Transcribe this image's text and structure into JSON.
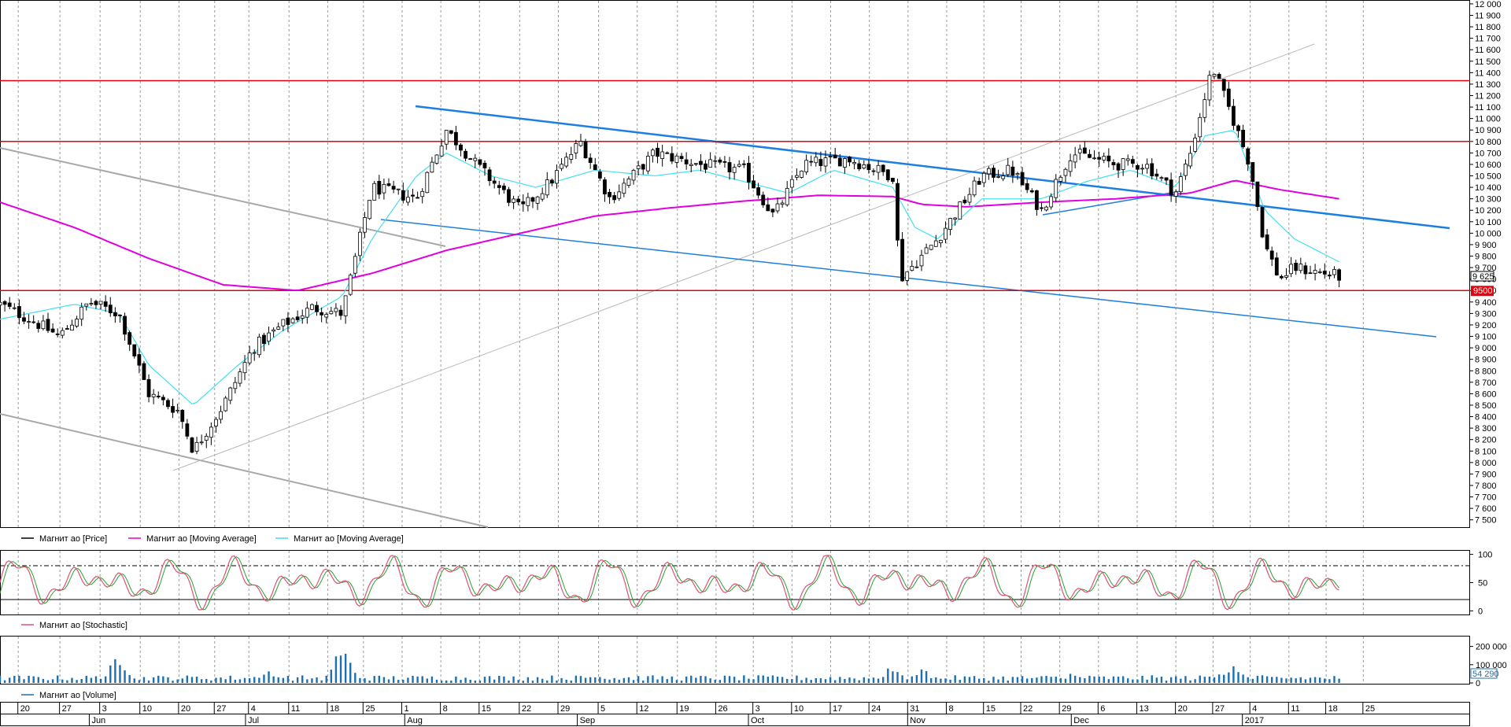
{
  "chart_data": {
    "type": "line",
    "price_panel": {
      "y_axis_ticks": [
        7500,
        7600,
        7700,
        7800,
        7900,
        8000,
        8100,
        8200,
        8300,
        8400,
        8500,
        8600,
        8700,
        8800,
        8900,
        9000,
        9100,
        9200,
        9300,
        9400,
        9500,
        9600,
        9700,
        9800,
        9900,
        10000,
        10100,
        10200,
        10300,
        10400,
        10500,
        10600,
        10700,
        10800,
        10900,
        11000,
        11100,
        11200,
        11300,
        11400,
        11500,
        11600,
        11700,
        11800,
        11900,
        12000
      ],
      "y_axis_tick_labels": [
        "7 500",
        "7 600",
        "7 700",
        "7 800",
        "7 900",
        "8 000",
        "8 100",
        "8 200",
        "8 300",
        "8 400",
        "8 500",
        "8 600",
        "8 700",
        "8 800",
        "8 900",
        "9 000",
        "9 100",
        "9 200",
        "9 300",
        "9 400",
        "9 500",
        "9 600",
        "9 700",
        "9 800",
        "9 900",
        "10 000",
        "10 100",
        "10 200",
        "10 300",
        "10 400",
        "10 500",
        "10 600",
        "10 700",
        "10 800",
        "10 900",
        "11 000",
        "11 100",
        "11 200",
        "11 300",
        "11 400",
        "11 500",
        "11 600",
        "11 700",
        "11 800",
        "11 900",
        "12 000"
      ],
      "ylim": [
        7450,
        12020
      ],
      "last_price_label": "9 625",
      "last_price": 9625,
      "support_label": "9500",
      "horizontal_levels": [
        11330,
        10800,
        9500
      ],
      "price_anchors": [
        [
          0,
          9380
        ],
        [
          0.02,
          9250
        ],
        [
          0.04,
          9100
        ],
        [
          0.06,
          9400
        ],
        [
          0.08,
          9300
        ],
        [
          0.1,
          8600
        ],
        [
          0.12,
          8450
        ],
        [
          0.13,
          8100
        ],
        [
          0.15,
          8500
        ],
        [
          0.17,
          9000
        ],
        [
          0.19,
          9200
        ],
        [
          0.21,
          9350
        ],
        [
          0.23,
          9300
        ],
        [
          0.25,
          10400
        ],
        [
          0.28,
          10300
        ],
        [
          0.3,
          10900
        ],
        [
          0.32,
          10600
        ],
        [
          0.35,
          10200
        ],
        [
          0.37,
          10450
        ],
        [
          0.39,
          10800
        ],
        [
          0.41,
          10300
        ],
        [
          0.44,
          10700
        ],
        [
          0.47,
          10600
        ],
        [
          0.5,
          10550
        ],
        [
          0.52,
          10150
        ],
        [
          0.54,
          10600
        ],
        [
          0.57,
          10650
        ],
        [
          0.6,
          10500
        ],
        [
          0.605,
          9600
        ],
        [
          0.63,
          9950
        ],
        [
          0.66,
          10500
        ],
        [
          0.68,
          10550
        ],
        [
          0.7,
          10200
        ],
        [
          0.72,
          10700
        ],
        [
          0.75,
          10600
        ],
        [
          0.77,
          10600
        ],
        [
          0.79,
          10350
        ],
        [
          0.8,
          10700
        ],
        [
          0.815,
          11450
        ],
        [
          0.83,
          10950
        ],
        [
          0.84,
          10600
        ],
        [
          0.85,
          9900
        ],
        [
          0.86,
          9600
        ],
        [
          0.87,
          9700
        ],
        [
          0.89,
          9650
        ],
        [
          0.9,
          9625
        ]
      ],
      "ma_long_anchors": [
        [
          0,
          10270
        ],
        [
          0.05,
          10050
        ],
        [
          0.1,
          9780
        ],
        [
          0.15,
          9550
        ],
        [
          0.2,
          9500
        ],
        [
          0.25,
          9650
        ],
        [
          0.3,
          9850
        ],
        [
          0.35,
          10000
        ],
        [
          0.4,
          10150
        ],
        [
          0.45,
          10220
        ],
        [
          0.5,
          10280
        ],
        [
          0.55,
          10330
        ],
        [
          0.6,
          10320
        ],
        [
          0.62,
          10250
        ],
        [
          0.65,
          10230
        ],
        [
          0.7,
          10270
        ],
        [
          0.75,
          10300
        ],
        [
          0.8,
          10350
        ],
        [
          0.83,
          10460
        ],
        [
          0.86,
          10380
        ],
        [
          0.9,
          10300
        ]
      ],
      "ma_short_anchors": [
        [
          0,
          9250
        ],
        [
          0.05,
          9380
        ],
        [
          0.08,
          9300
        ],
        [
          0.1,
          8850
        ],
        [
          0.13,
          8500
        ],
        [
          0.16,
          8850
        ],
        [
          0.19,
          9150
        ],
        [
          0.21,
          9300
        ],
        [
          0.23,
          9450
        ],
        [
          0.25,
          9950
        ],
        [
          0.28,
          10500
        ],
        [
          0.3,
          10700
        ],
        [
          0.33,
          10500
        ],
        [
          0.36,
          10400
        ],
        [
          0.4,
          10550
        ],
        [
          0.44,
          10500
        ],
        [
          0.47,
          10550
        ],
        [
          0.5,
          10450
        ],
        [
          0.53,
          10350
        ],
        [
          0.56,
          10550
        ],
        [
          0.6,
          10400
        ],
        [
          0.615,
          10050
        ],
        [
          0.63,
          9950
        ],
        [
          0.66,
          10300
        ],
        [
          0.7,
          10300
        ],
        [
          0.73,
          10450
        ],
        [
          0.76,
          10550
        ],
        [
          0.79,
          10400
        ],
        [
          0.81,
          10850
        ],
        [
          0.83,
          10900
        ],
        [
          0.85,
          10200
        ],
        [
          0.87,
          9950
        ],
        [
          0.9,
          9750
        ]
      ]
    },
    "stochastic_panel": {
      "y_axis_ticks": [
        0,
        50,
        100
      ],
      "y_axis_tick_labels": [
        "0",
        "50",
        "100"
      ],
      "ylim": [
        -5,
        105
      ],
      "reference_levels": [
        80,
        20
      ]
    },
    "volume_panel": {
      "y_axis_ticks": [
        0,
        100000,
        200000
      ],
      "y_axis_tick_labels": [
        "0",
        "100 000",
        "200 000"
      ],
      "ylim": [
        0,
        250000
      ],
      "last_volume_label": "54 290",
      "last_volume": 54290,
      "volume_spikes": [
        [
          0.08,
          190000
        ],
        [
          0.18,
          70000
        ],
        [
          0.23,
          230000
        ],
        [
          0.4,
          60000
        ],
        [
          0.6,
          110000
        ],
        [
          0.62,
          90000
        ],
        [
          0.72,
          60000
        ],
        [
          0.82,
          90000
        ],
        [
          0.83,
          100000
        ]
      ]
    },
    "legends": {
      "price": [
        {
          "name": "Магнит ао [Price]",
          "color": "#000000"
        },
        {
          "name": "Магнит ао [Moving Average]",
          "color": "#e000e0"
        },
        {
          "name": "Магнит ао [Moving Average]",
          "color": "#40e0f0"
        }
      ],
      "stochastic": [
        {
          "name": "Магнит ао [Stochastic]",
          "color": "#e0507a"
        }
      ],
      "volume": [
        {
          "name": "Магнит ао [Volume]",
          "color": "#1c6fb0"
        }
      ]
    },
    "x_axis": {
      "days": [
        {
          "label": "20",
          "f": 0.012
        },
        {
          "label": "27",
          "f": 0.04
        },
        {
          "label": "3",
          "f": 0.067
        },
        {
          "label": "10",
          "f": 0.094
        },
        {
          "label": "20",
          "f": 0.12
        },
        {
          "label": "27",
          "f": 0.144
        },
        {
          "label": "4",
          "f": 0.167
        },
        {
          "label": "11",
          "f": 0.194
        },
        {
          "label": "18",
          "f": 0.22
        },
        {
          "label": "25",
          "f": 0.244
        },
        {
          "label": "1",
          "f": 0.27
        },
        {
          "label": "8",
          "f": 0.296
        },
        {
          "label": "15",
          "f": 0.322
        },
        {
          "label": "22",
          "f": 0.349
        },
        {
          "label": "29",
          "f": 0.375
        },
        {
          "label": "5",
          "f": 0.402
        },
        {
          "label": "12",
          "f": 0.428
        },
        {
          "label": "19",
          "f": 0.455
        },
        {
          "label": "26",
          "f": 0.481
        },
        {
          "label": "3",
          "f": 0.506
        },
        {
          "label": "10",
          "f": 0.532
        },
        {
          "label": "17",
          "f": 0.558
        },
        {
          "label": "24",
          "f": 0.584
        },
        {
          "label": "31",
          "f": 0.61
        },
        {
          "label": "8",
          "f": 0.636
        },
        {
          "label": "15",
          "f": 0.661
        },
        {
          "label": "22",
          "f": 0.686
        },
        {
          "label": "29",
          "f": 0.712
        },
        {
          "label": "6",
          "f": 0.738
        },
        {
          "label": "13",
          "f": 0.764
        },
        {
          "label": "20",
          "f": 0.79
        },
        {
          "label": "27",
          "f": 0.815
        },
        {
          "label": "4",
          "f": 0.84
        },
        {
          "label": "11",
          "f": 0.866
        },
        {
          "label": "18",
          "f": 0.891
        },
        {
          "label": "25",
          "f": 0.916
        }
      ],
      "months": [
        {
          "label": "Jun",
          "f": 0.06
        },
        {
          "label": "Jul",
          "f": 0.165
        },
        {
          "label": "Aug",
          "f": 0.272
        },
        {
          "label": "Sep",
          "f": 0.388
        },
        {
          "label": "Oct",
          "f": 0.503
        },
        {
          "label": "Nov",
          "f": 0.61
        },
        {
          "label": "Dec",
          "f": 0.72
        },
        {
          "label": "2017",
          "f": 0.835
        }
      ]
    }
  }
}
